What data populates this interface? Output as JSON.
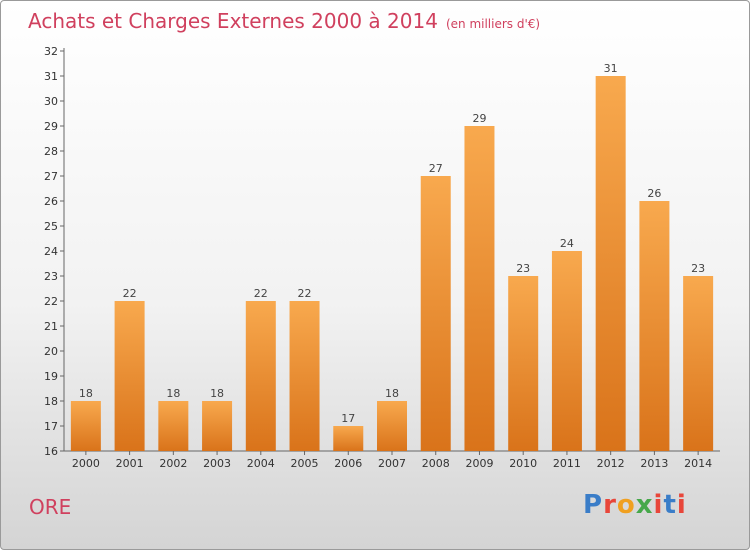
{
  "title": "Achats et Charges Externes 2000 à 2014",
  "unit_note": "(en milliers d'€)",
  "commune": "ORE",
  "logo": {
    "text": "Proxiti",
    "colors": [
      "#3a7dc8",
      "#e8463a",
      "#f0a020",
      "#46a84a",
      "#e8463a",
      "#3a7dc8",
      "#e8463a"
    ]
  },
  "colors": {
    "bar_top": "#f8a94e",
    "bar_bottom": "#d9731a",
    "title": "#d0405e",
    "grid": "#c8c8c8"
  },
  "chart_data": {
    "type": "bar",
    "title": "Achats et Charges Externes 2000 à 2014",
    "xlabel": "",
    "ylabel": "",
    "categories": [
      "2000",
      "2001",
      "2002",
      "2003",
      "2004",
      "2005",
      "2006",
      "2007",
      "2008",
      "2009",
      "2010",
      "2011",
      "2012",
      "2013",
      "2014"
    ],
    "values": [
      18,
      22,
      18,
      18,
      22,
      22,
      17,
      18,
      27,
      29,
      23,
      24,
      31,
      26,
      23
    ],
    "ylim": [
      16,
      32
    ],
    "yticks": [
      16,
      17,
      18,
      19,
      20,
      21,
      22,
      23,
      24,
      25,
      26,
      27,
      28,
      29,
      30,
      31,
      32
    ],
    "grid": false,
    "legend": "none"
  }
}
